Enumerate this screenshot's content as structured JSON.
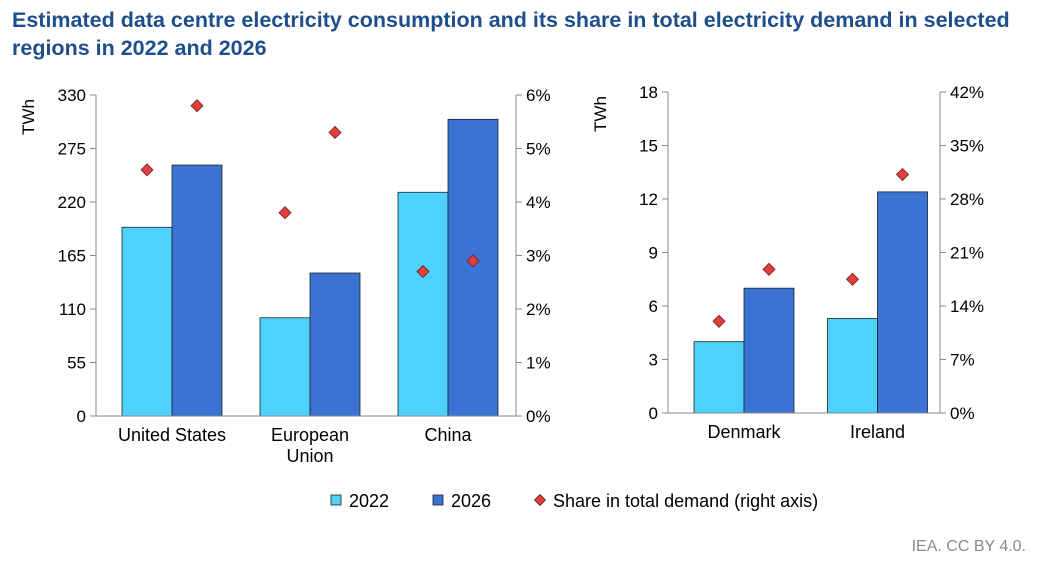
{
  "title": "Estimated data centre electricity consumption and its share in total electricity demand in selected regions in 2022 and 2026",
  "source": "IEA. CC BY 4.0.",
  "colors": {
    "s2022": "#4dd2ff",
    "s2026": "#3b73d4",
    "share": "#e0403c",
    "title": "#1f4e8c"
  },
  "legend": [
    {
      "label": "2022",
      "marker": "square",
      "color": "#4dd2ff"
    },
    {
      "label": "2026",
      "marker": "square",
      "color": "#3b73d4"
    },
    {
      "label": "Share in total demand (right axis)",
      "marker": "diamond",
      "color": "#e0403c"
    }
  ],
  "chart_data": [
    {
      "type": "bar",
      "categories": [
        [
          "United States"
        ],
        [
          "European",
          "Union"
        ],
        [
          "China"
        ]
      ],
      "series": [
        {
          "name": "2022",
          "values": [
            194,
            101,
            230
          ]
        },
        {
          "name": "2026",
          "values": [
            258,
            147,
            305
          ]
        }
      ],
      "share_series": {
        "name": "Share in total demand (right axis)",
        "values_2022": [
          4.6,
          3.8,
          2.7
        ],
        "values_2026": [
          5.8,
          5.3,
          2.9
        ]
      },
      "ylabel": "TWh",
      "ylim": [
        0,
        330
      ],
      "yticks": [
        "0",
        "55",
        "110",
        "165",
        "220",
        "275",
        "330"
      ],
      "y2lim": [
        0,
        6
      ],
      "y2ticks": [
        "0%",
        "1%",
        "2%",
        "3%",
        "4%",
        "5%",
        "6%"
      ]
    },
    {
      "type": "bar",
      "categories": [
        [
          "Denmark"
        ],
        [
          "Ireland"
        ]
      ],
      "series": [
        {
          "name": "2022",
          "values": [
            4.0,
            5.3
          ]
        },
        {
          "name": "2026",
          "values": [
            7.0,
            12.4
          ]
        }
      ],
      "share_series": {
        "name": "Share in total demand (right axis)",
        "values_2022": [
          12.0,
          17.5
        ],
        "values_2026": [
          18.8,
          31.2
        ]
      },
      "ylabel": "TWh",
      "ylim": [
        0,
        18
      ],
      "yticks": [
        "0",
        "3",
        "6",
        "9",
        "12",
        "15",
        "18"
      ],
      "y2lim": [
        0,
        42
      ],
      "y2ticks": [
        "0%",
        "7%",
        "14%",
        "21%",
        "28%",
        "35%",
        "42%"
      ]
    }
  ]
}
